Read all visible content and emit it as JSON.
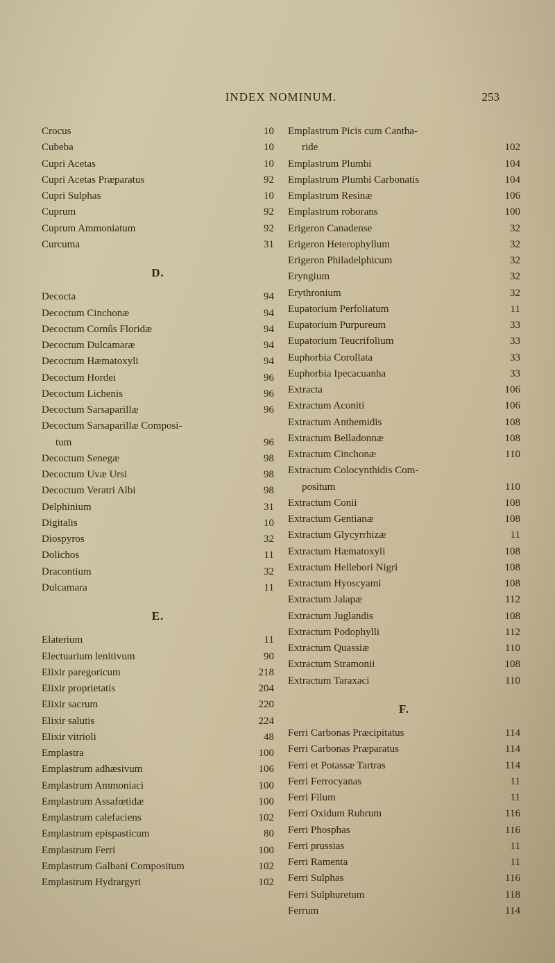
{
  "colors": {
    "paper_bg": "#c9bda0",
    "ink": "#2b2318"
  },
  "header": {
    "title": "INDEX NOMINUM.",
    "page_number": "253"
  },
  "left_column": [
    {
      "type": "entry",
      "label": "Crocus",
      "page": "10"
    },
    {
      "type": "entry",
      "label": "Cubeba",
      "page": "10"
    },
    {
      "type": "entry",
      "label": "Cupri Acetas",
      "page": "10"
    },
    {
      "type": "entry",
      "label": "Cupri Acetas Præparatus",
      "page": "92"
    },
    {
      "type": "entry",
      "label": "Cupri Sulphas",
      "page": "10"
    },
    {
      "type": "entry",
      "label": "Cuprum",
      "page": "92"
    },
    {
      "type": "entry",
      "label": "Cuprum Ammoniatum",
      "page": "92"
    },
    {
      "type": "entry",
      "label": "Curcuma",
      "page": "31"
    },
    {
      "type": "section",
      "letter": "D."
    },
    {
      "type": "entry",
      "label": "Decocta",
      "page": "94"
    },
    {
      "type": "entry",
      "label": "Decoctum Cinchonæ",
      "page": "94"
    },
    {
      "type": "entry",
      "label": "Decoctum Cornûs Floridæ",
      "page": "94"
    },
    {
      "type": "entry",
      "label": "Decoctum Dulcamaræ",
      "page": "94"
    },
    {
      "type": "entry",
      "label": "Decoctum Hæmatoxyli",
      "page": "94"
    },
    {
      "type": "entry",
      "label": "Decoctum Hordei",
      "page": "96"
    },
    {
      "type": "entry",
      "label": "Decoctum Lichenis",
      "page": "96"
    },
    {
      "type": "entry",
      "label": "Decoctum Sarsaparillæ",
      "page": "96"
    },
    {
      "type": "entry",
      "label": "Decoctum Sarsaparillæ Compositum",
      "page": "96",
      "indent": true,
      "split": true,
      "line1": "Decoctum Sarsaparillæ Composi-",
      "line2": "tum"
    },
    {
      "type": "entry",
      "label": "Decoctum Senegæ",
      "page": "98"
    },
    {
      "type": "entry",
      "label": "Decoctum Uvæ Ursi",
      "page": "98"
    },
    {
      "type": "entry",
      "label": "Decoctum Veratri Albi",
      "page": "98"
    },
    {
      "type": "entry",
      "label": "Delphinium",
      "page": "31"
    },
    {
      "type": "entry",
      "label": "Digitalis",
      "page": "10"
    },
    {
      "type": "entry",
      "label": "Diospyros",
      "page": "32"
    },
    {
      "type": "entry",
      "label": "Dolichos",
      "page": "11"
    },
    {
      "type": "entry",
      "label": "Dracontium",
      "page": "32"
    },
    {
      "type": "entry",
      "label": "Dulcamara",
      "page": "11"
    },
    {
      "type": "section",
      "letter": "E."
    },
    {
      "type": "entry",
      "label": "Elaterium",
      "page": "11"
    },
    {
      "type": "entry",
      "label": "Electuarium lenitivum",
      "page": "90"
    },
    {
      "type": "entry",
      "label": "Elixir paregoricum",
      "page": "218"
    },
    {
      "type": "entry",
      "label": "Elixir proprietatis",
      "page": "204"
    },
    {
      "type": "entry",
      "label": "Elixir sacrum",
      "page": "220"
    },
    {
      "type": "entry",
      "label": "Elixir salutis",
      "page": "224"
    },
    {
      "type": "entry",
      "label": "Elixir vitrioli",
      "page": "48"
    },
    {
      "type": "entry",
      "label": "Emplastra",
      "page": "100"
    },
    {
      "type": "entry",
      "label": "Emplastrum adhæsivum",
      "page": "106"
    },
    {
      "type": "entry",
      "label": "Emplastrum Ammoniaci",
      "page": "100"
    },
    {
      "type": "entry",
      "label": "Emplastrum Assafœtidæ",
      "page": "100"
    },
    {
      "type": "entry",
      "label": "Emplastrum calefaciens",
      "page": "102"
    },
    {
      "type": "entry",
      "label": "Emplastrum epispasticum",
      "page": "80"
    },
    {
      "type": "entry",
      "label": "Emplastrum Ferri",
      "page": "100"
    },
    {
      "type": "entry",
      "label": "Emplastrum Galbani Compositum",
      "page": "102"
    },
    {
      "type": "entry",
      "label": "Emplastrum Hydrargyri",
      "page": "102"
    }
  ],
  "right_column": [
    {
      "type": "entry",
      "label": "Emplastrum Picis cum Cantharide",
      "page": "102",
      "split": true,
      "line1": "Emplastrum Picis cum Cantha-",
      "line2": "ride"
    },
    {
      "type": "entry",
      "label": "Emplastrum Plumbi",
      "page": "104"
    },
    {
      "type": "entry",
      "label": "Emplastrum Plumbi Carbonatis",
      "page": "104"
    },
    {
      "type": "entry",
      "label": "Emplastrum Resinæ",
      "page": "106"
    },
    {
      "type": "entry",
      "label": "Emplastrum roborans",
      "page": "100"
    },
    {
      "type": "entry",
      "label": "Erigeron Canadense",
      "page": "32"
    },
    {
      "type": "entry",
      "label": "Erigeron Heterophyllum",
      "page": "32"
    },
    {
      "type": "entry",
      "label": "Erigeron Philadelphicum",
      "page": "32"
    },
    {
      "type": "entry",
      "label": "Eryngium",
      "page": "32"
    },
    {
      "type": "entry",
      "label": "Erythronium",
      "page": "32"
    },
    {
      "type": "entry",
      "label": "Eupatorium Perfoliatum",
      "page": "11"
    },
    {
      "type": "entry",
      "label": "Eupatorium Purpureum",
      "page": "33"
    },
    {
      "type": "entry",
      "label": "Eupatorium Teucrifolium",
      "page": "33"
    },
    {
      "type": "entry",
      "label": "Euphorbia Corollata",
      "page": "33"
    },
    {
      "type": "entry",
      "label": "Euphorbia Ipecacuanha",
      "page": "33"
    },
    {
      "type": "entry",
      "label": "Extracta",
      "page": "106"
    },
    {
      "type": "entry",
      "label": "Extractum Aconiti",
      "page": "106"
    },
    {
      "type": "entry",
      "label": "Extractum Anthemidis",
      "page": "108"
    },
    {
      "type": "entry",
      "label": "Extractum Belladonnæ",
      "page": "108"
    },
    {
      "type": "entry",
      "label": "Extractum Cinchonæ",
      "page": "110"
    },
    {
      "type": "entry",
      "label": "Extractum Colocynthidis Compositum",
      "page": "110",
      "split": true,
      "line1": "Extractum Colocynthidis Com-",
      "line2": "positum"
    },
    {
      "type": "entry",
      "label": "Extractum Conii",
      "page": "108"
    },
    {
      "type": "entry",
      "label": "Extractum Gentianæ",
      "page": "108"
    },
    {
      "type": "entry",
      "label": "Extractum Glycyrrhizæ",
      "page": "11"
    },
    {
      "type": "entry",
      "label": "Extractum Hæmatoxyli",
      "page": "108"
    },
    {
      "type": "entry",
      "label": "Extractum Hellebori Nigri",
      "page": "108"
    },
    {
      "type": "entry",
      "label": "Extractum Hyoscyami",
      "page": "108"
    },
    {
      "type": "entry",
      "label": "Extractum Jalapæ",
      "page": "112"
    },
    {
      "type": "entry",
      "label": "Extractum Juglandis",
      "page": "108"
    },
    {
      "type": "entry",
      "label": "Extractum Podophylli",
      "page": "112"
    },
    {
      "type": "entry",
      "label": "Extractum Quassiæ",
      "page": "110"
    },
    {
      "type": "entry",
      "label": "Extractum Stramonii",
      "page": "108"
    },
    {
      "type": "entry",
      "label": "Extractum Taraxaci",
      "page": "110"
    },
    {
      "type": "section",
      "letter": "F."
    },
    {
      "type": "entry",
      "label": "Ferri Carbonas Præcipitatus",
      "page": "114"
    },
    {
      "type": "entry",
      "label": "Ferri Carbonas Præparatus",
      "page": "114"
    },
    {
      "type": "entry",
      "label": "Ferri et Potassæ Tartras",
      "page": "114"
    },
    {
      "type": "entry",
      "label": "Ferri Ferrocyanas",
      "page": "11"
    },
    {
      "type": "entry",
      "label": "Ferri Filum",
      "page": "11"
    },
    {
      "type": "entry",
      "label": "Ferri Oxidum Rubrum",
      "page": "116"
    },
    {
      "type": "entry",
      "label": "Ferri Phosphas",
      "page": "116"
    },
    {
      "type": "entry",
      "label": "Ferri prussias",
      "page": "11"
    },
    {
      "type": "entry",
      "label": "Ferri Ramenta",
      "page": "11"
    },
    {
      "type": "entry",
      "label": "Ferri Sulphas",
      "page": "116"
    },
    {
      "type": "entry",
      "label": "Ferri Sulphuretum",
      "page": "118"
    },
    {
      "type": "entry",
      "label": "Ferrum",
      "page": "114"
    }
  ]
}
